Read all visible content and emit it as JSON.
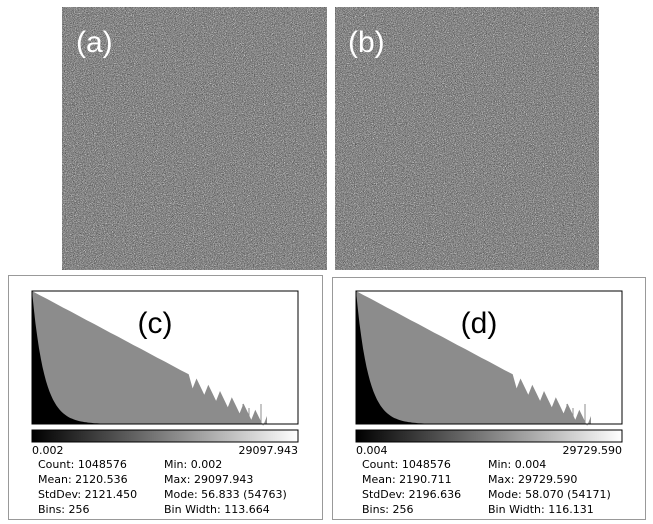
{
  "images": [
    {
      "label": "(a)"
    },
    {
      "label": "(b)"
    }
  ],
  "histograms": [
    {
      "label": "(c)",
      "min_label": "0.002",
      "max_label": "29097.943",
      "stats": [
        [
          "Count: 1048576",
          "Min: 0.002"
        ],
        [
          "Mean: 2120.536",
          "Max: 29097.943"
        ],
        [
          "StdDev: 2121.450",
          "Mode: 56.833 (54763)"
        ],
        [
          "Bins: 256",
          "Bin Width: 113.664"
        ]
      ]
    },
    {
      "label": "(d)",
      "min_label": "0.004",
      "max_label": "29729.590",
      "stats": [
        [
          "Count: 1048576",
          "Min: 0.004"
        ],
        [
          "Mean: 2190.711",
          "Max: 29729.590"
        ],
        [
          "StdDev: 2196.636",
          "Mode: 58.070 (54171)"
        ],
        [
          "Bins: 256",
          "Bin Width: 116.131"
        ]
      ]
    }
  ]
}
